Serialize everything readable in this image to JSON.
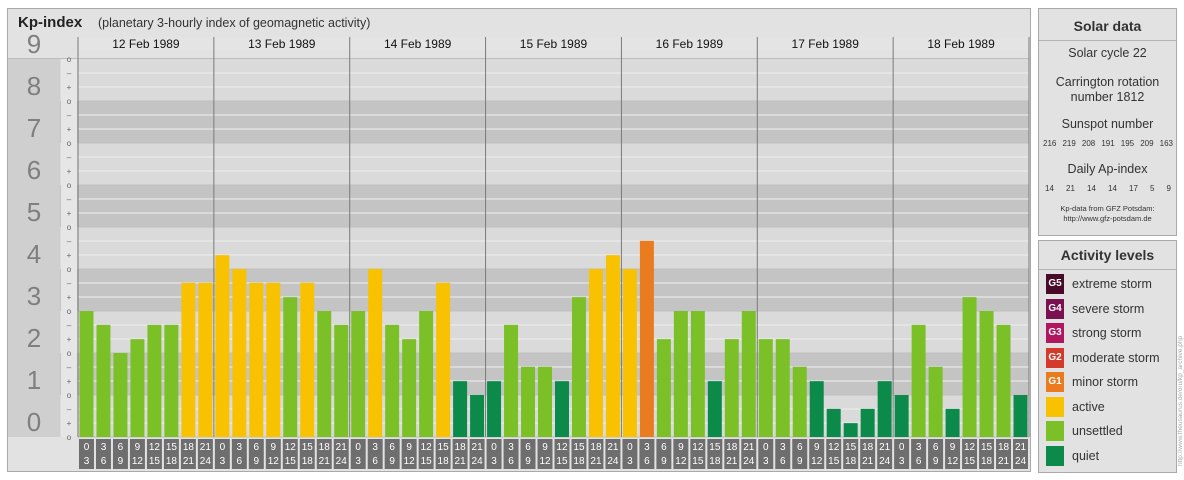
{
  "title": {
    "main": "Kp-index",
    "subtitle": "(planetary 3-hourly index of geomagnetic activity)"
  },
  "chart_data": {
    "type": "bar",
    "ylim": [
      0,
      9
    ],
    "y_ticks": [
      "0",
      "1",
      "2",
      "3",
      "4",
      "5",
      "6",
      "7",
      "8",
      "9"
    ],
    "sub_ticks": [
      "o",
      "+",
      "–"
    ],
    "days": [
      {
        "label": "12 Feb 1989",
        "values": [
          3.0,
          2.67,
          2.0,
          2.33,
          2.67,
          2.67,
          3.67,
          3.67
        ]
      },
      {
        "label": "13 Feb 1989",
        "values": [
          4.33,
          4.0,
          3.67,
          3.67,
          3.33,
          3.67,
          3.0,
          2.67
        ]
      },
      {
        "label": "14 Feb 1989",
        "values": [
          3.0,
          4.0,
          2.67,
          2.33,
          3.0,
          3.67,
          1.33,
          1.0
        ]
      },
      {
        "label": "15 Feb 1989",
        "values": [
          1.33,
          2.67,
          1.67,
          1.67,
          1.33,
          3.33,
          4.0,
          4.33
        ]
      },
      {
        "label": "16 Feb 1989",
        "values": [
          4.0,
          4.67,
          2.33,
          3.0,
          3.0,
          1.33,
          2.33,
          3.0
        ]
      },
      {
        "label": "17 Feb 1989",
        "values": [
          2.33,
          2.33,
          1.67,
          1.33,
          0.67,
          0.33,
          0.67,
          1.33
        ]
      },
      {
        "label": "18 Feb 1989",
        "values": [
          1.0,
          2.67,
          1.67,
          0.67,
          3.33,
          3.0,
          2.67,
          1.0
        ]
      }
    ],
    "hour_top": [
      "0",
      "3",
      "6",
      "9",
      "12",
      "15",
      "18",
      "21"
    ],
    "hour_bottom": [
      "3",
      "6",
      "9",
      "12",
      "15",
      "18",
      "21",
      "24"
    ],
    "colors": {
      "quiet": "#0b8a4a",
      "unsettled": "#7ac026",
      "active": "#f8c200",
      "G1": "#ea7b1f",
      "band_dark": "#c4c4c4",
      "band_light": "#dadada",
      "axis_num": "#7f7f7f",
      "grid": "#efefef"
    }
  },
  "solar": {
    "title": "Solar data",
    "cycle": "Solar cycle 22",
    "carrington_1": "Carrington rotation",
    "carrington_2": "number 1812",
    "sunspot_title": "Sunspot number",
    "sunspot_values": [
      "216",
      "219",
      "208",
      "191",
      "195",
      "209",
      "163"
    ],
    "ap_title": "Daily Ap-index",
    "ap_values": [
      "14",
      "21",
      "14",
      "14",
      "17",
      "5",
      "9"
    ],
    "credit_1": "Kp-data from GFZ Potsdam:",
    "credit_2": "http://www.gfz-potsdam.de"
  },
  "activity": {
    "title": "Activity levels",
    "items": [
      {
        "badge": "G5",
        "label": "extreme storm",
        "color": "#4a0a2a"
      },
      {
        "badge": "G4",
        "label": "severe storm",
        "color": "#7a1050"
      },
      {
        "badge": "G3",
        "label": "strong storm",
        "color": "#b0175e"
      },
      {
        "badge": "G2",
        "label": "moderate storm",
        "color": "#d33a2c"
      },
      {
        "badge": "G1",
        "label": "minor storm",
        "color": "#ea7b1f"
      },
      {
        "badge": "",
        "label": "active",
        "color": "#f8c200"
      },
      {
        "badge": "",
        "label": "unsettled",
        "color": "#7ac026"
      },
      {
        "badge": "",
        "label": "quiet",
        "color": "#0b8a4a"
      }
    ]
  },
  "side_credit": "http://www.theusaurus.de/oru/kp_archive.php"
}
